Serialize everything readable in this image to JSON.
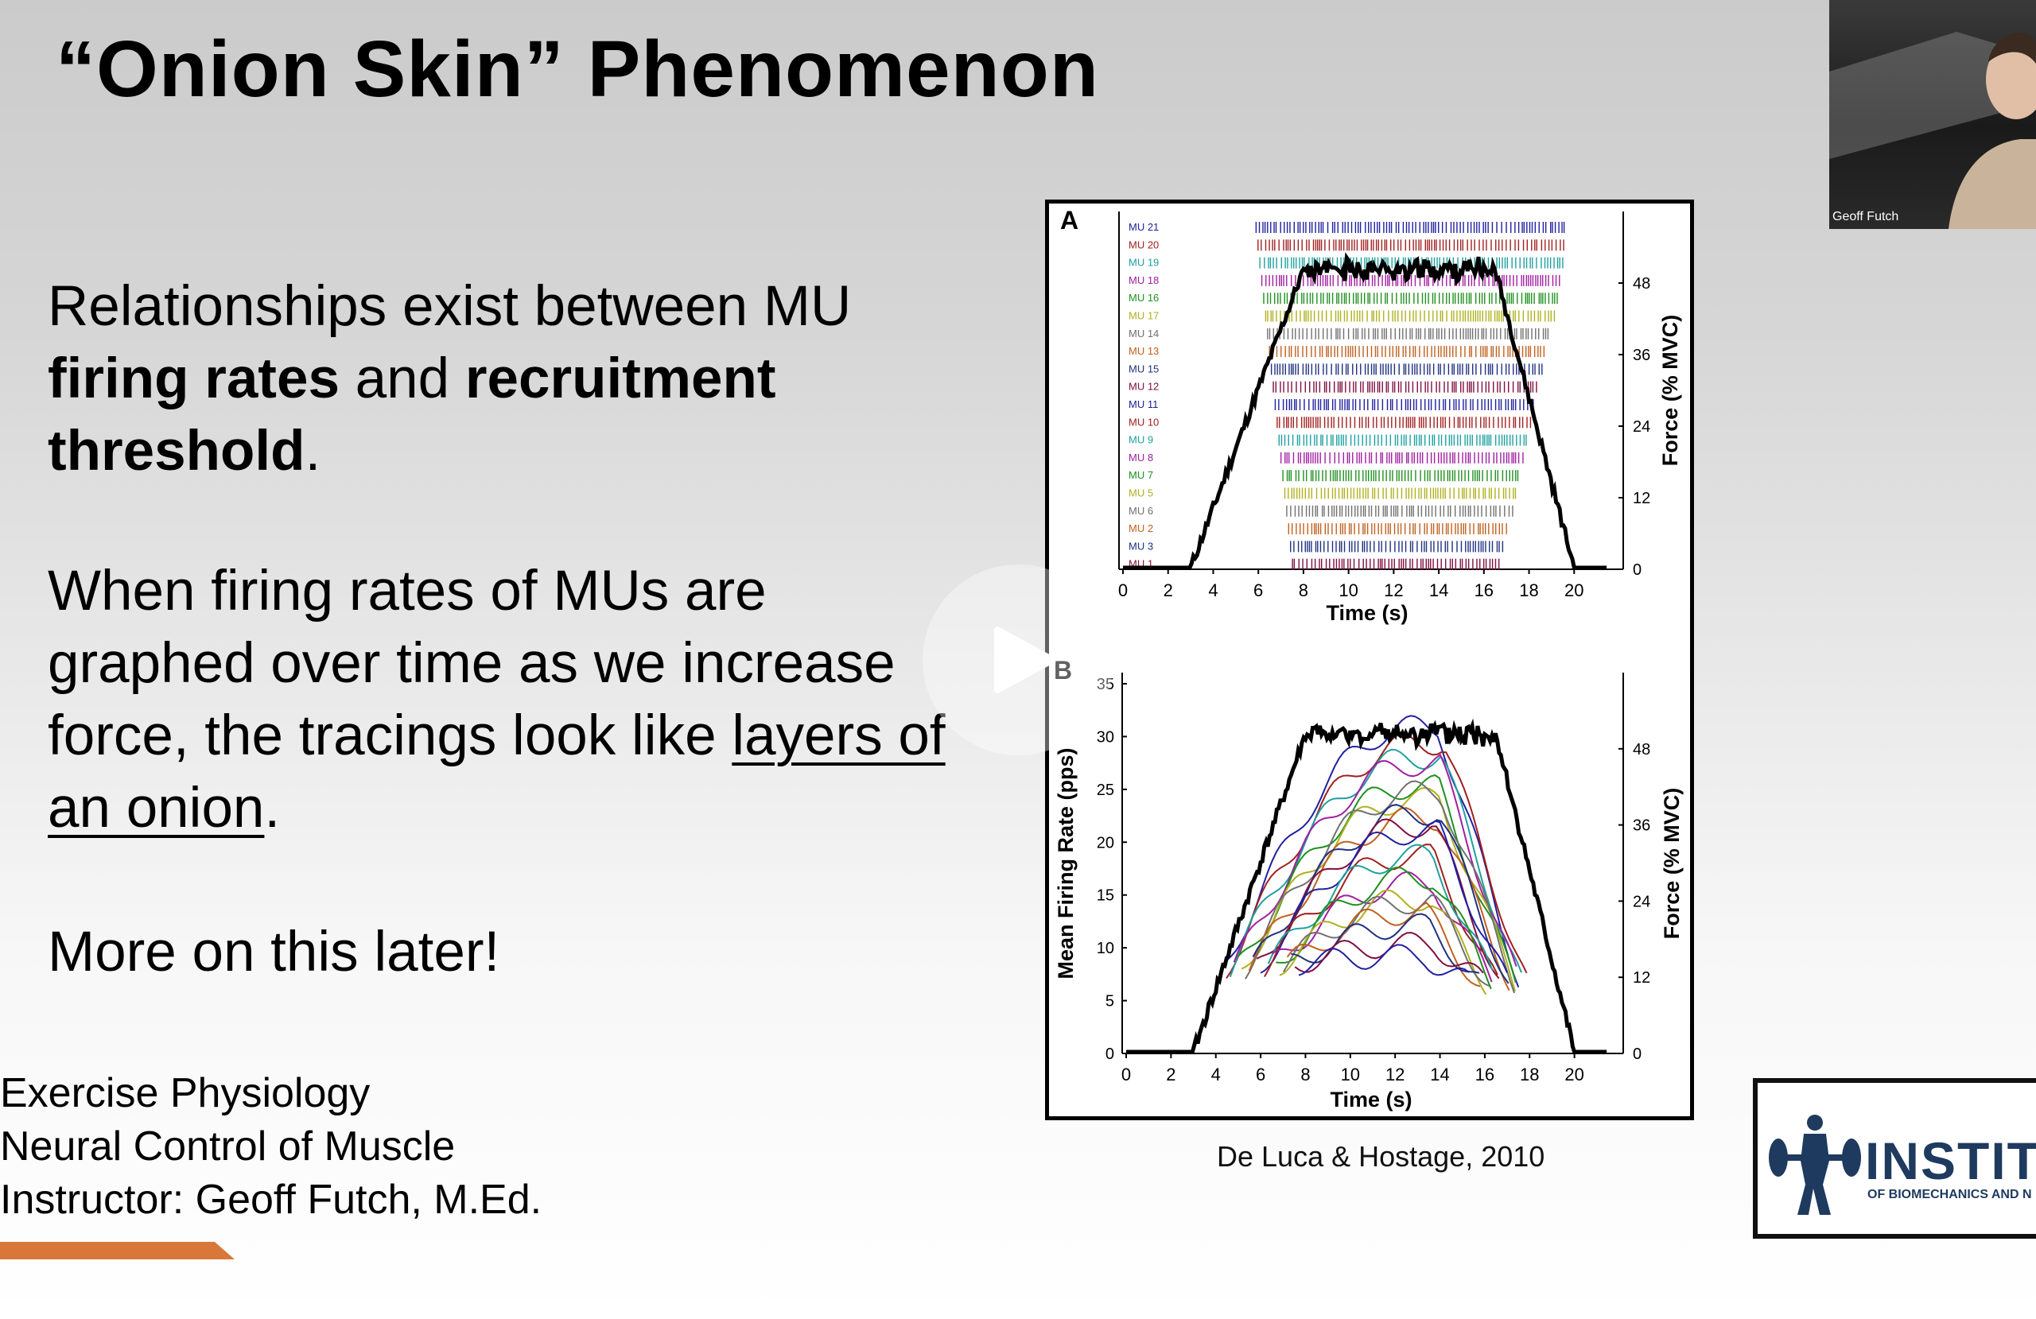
{
  "slide": {
    "title": "“Onion Skin” Phenomenon",
    "paragraph1": {
      "part1": "Relationships exist between MU ",
      "bold1": "firing rates",
      "part2": " and ",
      "bold2": "recruitment threshold",
      "part3": "."
    },
    "paragraph2": {
      "part1": "When firing rates of MUs are graphed over time as we increase force, the tracings look like ",
      "underline": "layers of an onion",
      "part2": "."
    },
    "paragraph3": "More on this later!",
    "footer": {
      "line1": "Exercise Physiology",
      "line2": "Neural Control of Muscle",
      "line3": "Instructor: Geoff Futch, M.Ed."
    },
    "caption": "De Luca & Hostage, 2010",
    "accent_color": "#d9773a"
  },
  "figure": {
    "panel_a": {
      "letter": "A",
      "mu_labels": [
        "MU 21",
        "MU 20",
        "MU 19",
        "MU 18",
        "MU 16",
        "MU 17",
        "MU 14",
        "MU 13",
        "MU 15",
        "MU 12",
        "MU 11",
        "MU 10",
        "MU 9",
        "MU 8",
        "MU 7",
        "MU 5",
        "MU 6",
        "MU 2",
        "MU 3",
        "MU 1"
      ],
      "x_ticks": [
        "0",
        "2",
        "4",
        "6",
        "8",
        "10",
        "12",
        "14",
        "16",
        "18",
        "20"
      ],
      "right_ticks": [
        "48",
        "36",
        "24",
        "12",
        "0"
      ],
      "xlabel": "Time (s)",
      "right_label": "Force (% MVC)"
    },
    "panel_b": {
      "letter": "B",
      "left_ticks": [
        "35",
        "30",
        "25",
        "20",
        "15",
        "10",
        "5",
        "0"
      ],
      "x_ticks": [
        "0",
        "2",
        "4",
        "6",
        "8",
        "10",
        "12",
        "14",
        "16",
        "18",
        "20"
      ],
      "right_ticks": [
        "48",
        "36",
        "24",
        "12",
        "0"
      ],
      "xlabel": "Time (s)",
      "ylabel": "Mean Firing Rate (pps)",
      "right_label": "Force (% MVC)"
    },
    "series_colors": [
      "#2020a0",
      "#a02020",
      "#20a0a0",
      "#a020a0",
      "#209020",
      "#b0b020",
      "#707070",
      "#c06020",
      "#203080",
      "#801040"
    ]
  },
  "webcam": {
    "name": "Geoff Futch"
  },
  "logo": {
    "word": "INSTIT",
    "subtitle": "OF BIOMECHANICS AND N"
  }
}
